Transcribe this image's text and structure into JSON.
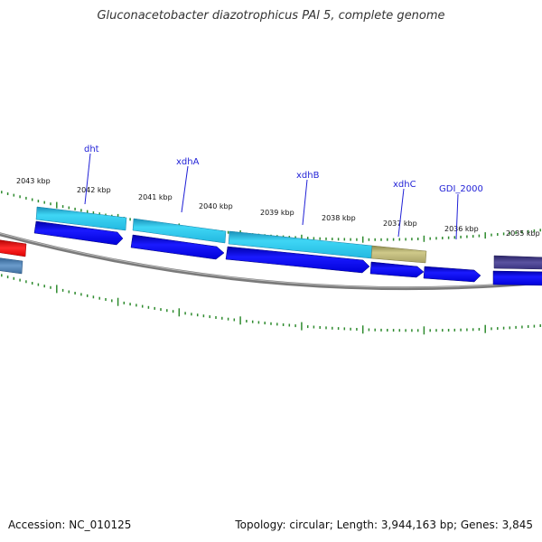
{
  "title": "Gluconacetobacter diazotrophicus PAl 5, complete genome",
  "footer": {
    "accession": "Accession: NC_010125",
    "summary": "Topology: circular; Length: 3,944,163 bp; Genes: 3,845"
  },
  "colors": {
    "backbone": "#7f7f7f",
    "tick": "#2e8b2e",
    "label_blue": "#1f1fd6",
    "cds_blue": "#0000ee",
    "gene_cyan": "#22c3ee",
    "gene_olive": "#b5b070",
    "gene_navy": "#3d3580",
    "gene_red": "#ee0000",
    "gene_steel": "#4a7fb5"
  },
  "kbp_labels": [
    "2043 kbp",
    "2042 kbp",
    "2041 kbp",
    "2040 kbp",
    "2039 kbp",
    "2038 kbp",
    "2037 kbp",
    "2036 kbp",
    "2035 kbp"
  ],
  "gene_labels": [
    "dht",
    "xdhA",
    "xdhB",
    "xdhC",
    "GDI_2000"
  ]
}
